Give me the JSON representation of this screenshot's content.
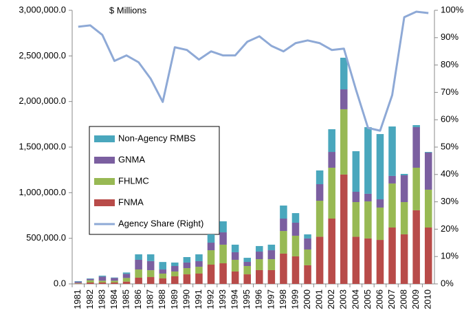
{
  "chart_data": {
    "type": "bar",
    "annotation": "$ Millions",
    "categories": [
      "1981",
      "1982",
      "1983",
      "1984",
      "1985",
      "1986",
      "1987",
      "1988",
      "1989",
      "1990",
      "1991",
      "1992",
      "1993",
      "1994",
      "1995",
      "1996",
      "1997",
      "1998",
      "1999",
      "2000",
      "2001",
      "2002",
      "2003",
      "2004",
      "2005",
      "2006",
      "2007",
      "2008",
      "2009",
      "2010"
    ],
    "stacked": true,
    "series": [
      {
        "name": "FNMA",
        "color": "#b84b49",
        "values": [
          5000,
          15000,
          15000,
          15000,
          25000,
          68000,
          75000,
          60000,
          83000,
          105000,
          113000,
          211000,
          226000,
          136000,
          105000,
          151000,
          151000,
          332000,
          302000,
          204000,
          517000,
          716000,
          1199000,
          517000,
          498000,
          482000,
          618000,
          543000,
          807000,
          618000
        ]
      },
      {
        "name": "FHLMC",
        "color": "#98b954",
        "values": [
          5000,
          25000,
          20000,
          20000,
          40000,
          90000,
          75000,
          53000,
          53000,
          68000,
          75000,
          158000,
          204000,
          128000,
          91000,
          120000,
          120000,
          248000,
          226000,
          173000,
          395000,
          558000,
          716000,
          380000,
          407000,
          355000,
          483000,
          354000,
          467000,
          415000
        ]
      },
      {
        "name": "GNMA",
        "color": "#7b5fa0",
        "values": [
          15000,
          15000,
          45000,
          30000,
          45000,
          106000,
          100000,
          45000,
          60000,
          61000,
          61000,
          83000,
          135000,
          83000,
          45000,
          83000,
          98000,
          136000,
          143000,
          121000,
          181000,
          173000,
          218000,
          113000,
          83000,
          90000,
          83000,
          294000,
          445000,
          407000
        ]
      },
      {
        "name": "Non-Agency RMBS",
        "color": "#4aa7bd",
        "values": [
          5000,
          5000,
          10000,
          5000,
          15000,
          60000,
          74000,
          82000,
          38000,
          60000,
          75000,
          91000,
          121000,
          83000,
          45000,
          61000,
          61000,
          143000,
          105000,
          45000,
          151000,
          249000,
          347000,
          445000,
          731000,
          716000,
          542000,
          15000,
          22000,
          7000
        ]
      },
      {
        "name": "Agency Share (Right)",
        "type": "line",
        "axis": "y2",
        "color": "#8ea9d6",
        "values": [
          94,
          94.5,
          91,
          81.5,
          83.5,
          81,
          75,
          66.5,
          86.5,
          85.5,
          82,
          85,
          83.5,
          83.5,
          88.5,
          90.5,
          87,
          85,
          88,
          89,
          88,
          85.5,
          86,
          71,
          57,
          56,
          69,
          97.5,
          99.5,
          99
        ]
      }
    ],
    "ylim": [
      0,
      3000000
    ],
    "yticks": [
      {
        "value": 0,
        "label": "0.0"
      },
      {
        "value": 500000,
        "label": "500,000.0"
      },
      {
        "value": 1000000,
        "label": "1,000,000.0"
      },
      {
        "value": 1500000,
        "label": "1,500,000.0"
      },
      {
        "value": 2000000,
        "label": "2,000,000.0"
      },
      {
        "value": 2500000,
        "label": "2,500,000.0"
      },
      {
        "value": 3000000,
        "label": "3,000,000.0"
      }
    ],
    "y2lim": [
      0,
      100
    ],
    "y2ticks": [
      {
        "value": 0,
        "label": "0%"
      },
      {
        "value": 10,
        "label": "10%"
      },
      {
        "value": 20,
        "label": "20%"
      },
      {
        "value": 30,
        "label": "30%"
      },
      {
        "value": 40,
        "label": "40%"
      },
      {
        "value": 50,
        "label": "50%"
      },
      {
        "value": 60,
        "label": "60%"
      },
      {
        "value": 70,
        "label": "70%"
      },
      {
        "value": 80,
        "label": "80%"
      },
      {
        "value": 90,
        "label": "90%"
      },
      {
        "value": 100,
        "label": "100%"
      }
    ],
    "grid": false,
    "legend": "left"
  }
}
